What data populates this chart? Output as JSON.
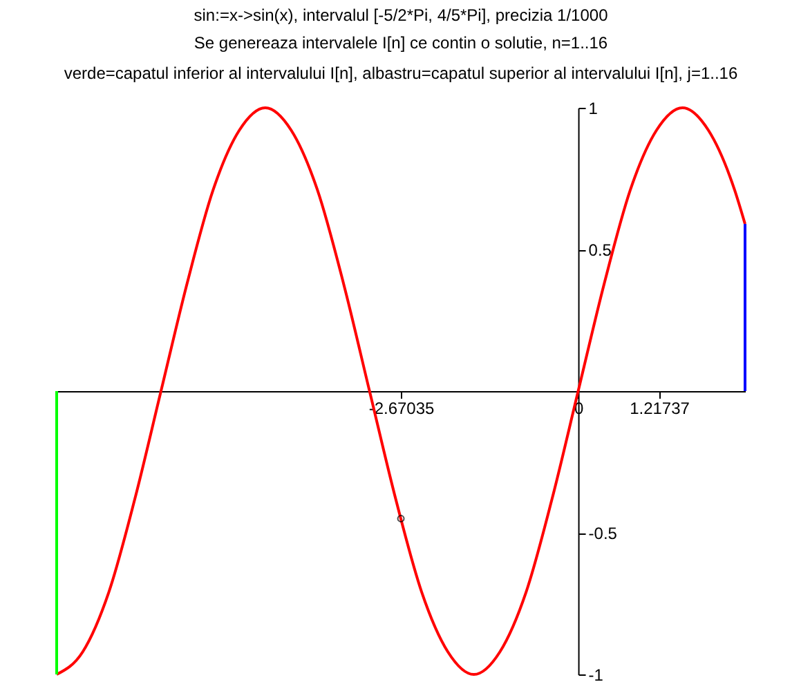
{
  "chart_data": {
    "type": "line",
    "title": "sin:=x->sin(x), intervalul [-5/2*Pi, 4/5*Pi], precizia 1/1000",
    "subtitle": "Se genereaza intervalele I[n] ce contin o solutie, n=1..16\nverde=capatul inferior al intervalului I[n], albastru=capatul superior al intervalului I[n], j=1..16",
    "series": [
      {
        "type": "line",
        "color": "#ff0000",
        "x": [
          -7.854,
          -7.461,
          -7.069,
          -6.676,
          -6.283,
          -5.89,
          -5.498,
          -5.105,
          -4.712,
          -4.32,
          -3.927,
          -3.534,
          -3.142,
          -2.749,
          -2.356,
          -1.963,
          -1.571,
          -1.178,
          -0.785,
          -0.393,
          0,
          0.393,
          0.785,
          1.178,
          1.571,
          1.963,
          2.356,
          2.513
        ],
        "values": [
          -1,
          -0.92,
          -0.71,
          -0.38,
          0,
          0.38,
          0.71,
          0.92,
          1,
          0.92,
          0.71,
          0.38,
          0,
          -0.38,
          -0.71,
          -0.92,
          -1,
          -0.92,
          -0.71,
          -0.38,
          0,
          0.38,
          0.71,
          0.92,
          1,
          0.92,
          0.71,
          0.59
        ]
      },
      {
        "type": "line",
        "color": "#00ff00",
        "x": [
          -7.854,
          -7.854
        ],
        "values": [
          0,
          -1
        ]
      },
      {
        "type": "line",
        "color": "#0000ff",
        "x": [
          2.513,
          2.513
        ],
        "values": [
          0,
          0.59
        ]
      },
      {
        "type": "scatter",
        "color": "#000000",
        "marker": "circle",
        "x": [
          -2.67
        ],
        "values": [
          -0.45
        ]
      }
    ],
    "xlim": [
      -7.854,
      2.513
    ],
    "ylim": [
      -1,
      1
    ],
    "xticks": [
      -2.67035,
      0,
      1.21737
    ],
    "yticks": [
      -1,
      -0.5,
      0.5,
      1
    ],
    "grid": false
  }
}
